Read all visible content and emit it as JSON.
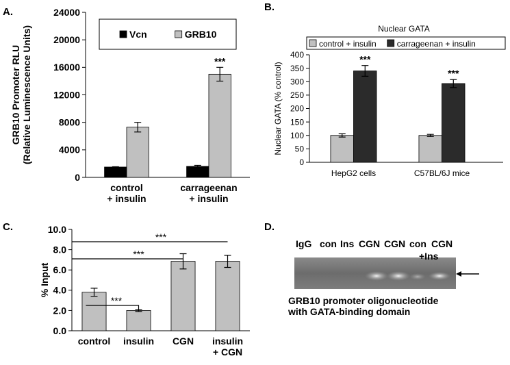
{
  "chart_data": [
    {
      "panel_label": "A.",
      "type": "bar",
      "y_label": "GRB10 Promoter RLU\n(Relative Luminescence Units)",
      "categories": [
        "control\n+ insulin",
        "carrageenan\n+ insulin"
      ],
      "series": [
        {
          "name": "Vcn",
          "color": "#000000",
          "values": [
            1500,
            1600
          ],
          "errors": [
            50,
            150
          ],
          "significance": [
            null,
            null
          ]
        },
        {
          "name": "GRB10",
          "color": "#c0c0c0",
          "values": [
            7300,
            15000
          ],
          "errors": [
            700,
            1000
          ],
          "significance": [
            null,
            "***"
          ]
        }
      ],
      "ylim": [
        0,
        24000
      ],
      "yticks": [
        0,
        4000,
        8000,
        12000,
        16000,
        20000,
        24000
      ],
      "legend": "top"
    },
    {
      "panel_label": "B.",
      "type": "bar",
      "title": "Nuclear GATA",
      "y_label": "Nuclear GATA (% control)",
      "categories": [
        "HepG2 cells",
        "C57BL/6J mice"
      ],
      "series": [
        {
          "name": "control + insulin",
          "color": "#c0c0c0",
          "values": [
            100,
            100
          ],
          "errors": [
            6,
            4
          ],
          "significance": [
            null,
            null
          ]
        },
        {
          "name": "carrageenan + insulin",
          "color": "#2b2b2b",
          "values": [
            340,
            293
          ],
          "errors": [
            20,
            15
          ],
          "significance": [
            "***",
            "***"
          ]
        }
      ],
      "ylim": [
        0,
        400
      ],
      "yticks": [
        0,
        50,
        100,
        150,
        200,
        250,
        300,
        350,
        400
      ],
      "legend": "above"
    },
    {
      "panel_label": "C.",
      "type": "bar",
      "y_label": "% Input",
      "categories": [
        "control",
        "insulin",
        "CGN",
        "insulin\n+ CGN"
      ],
      "series": [
        {
          "color": "#c0c0c0",
          "values": [
            3.8,
            2.0,
            6.85,
            6.85
          ],
          "errors": [
            0.4,
            0.1,
            0.75,
            0.6
          ]
        }
      ],
      "ylim": [
        0,
        10
      ],
      "yticks": [
        {
          "value": 0,
          "label": "0.0"
        },
        {
          "value": 2,
          "label": "2.0"
        },
        {
          "value": 4,
          "label": "4.0"
        },
        {
          "value": 6,
          "label": "6.0"
        },
        {
          "value": 8,
          "label": "8.0"
        },
        {
          "value": 10,
          "label": "10.0"
        }
      ],
      "comparisons": [
        {
          "from": 0,
          "to": 3,
          "label": "***"
        },
        {
          "from": 0,
          "to": 2,
          "label": "***"
        },
        {
          "from": 0,
          "to": 1,
          "label": "***"
        }
      ]
    }
  ],
  "gel": {
    "panel_label": "D.",
    "lanes": [
      "IgG",
      "con",
      "Ins",
      "CGN",
      "CGN",
      "con",
      "CGN"
    ],
    "lane_sublabel": "+Ins",
    "caption": "GRB10 promoter oligonucleotide\nwith GATA-binding domain"
  }
}
